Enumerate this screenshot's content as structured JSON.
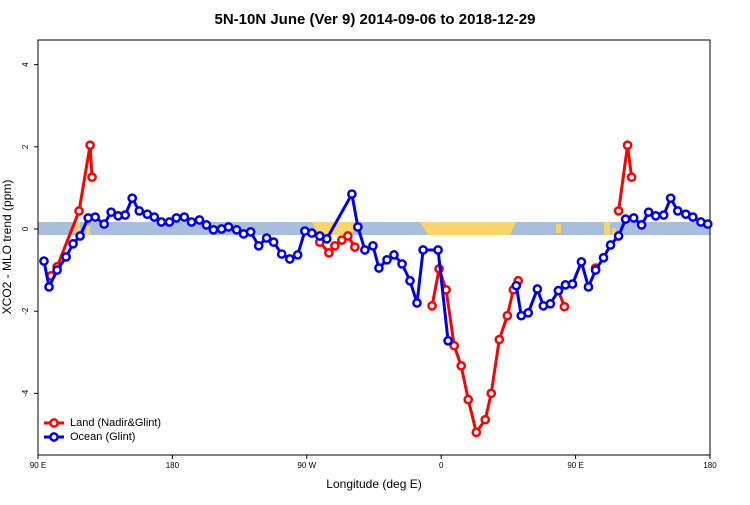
{
  "chart_data": {
    "type": "line",
    "title": "5N-10N June (Ver 9)   2014-09-06 to 2018-12-29",
    "x_label": "Longitude (deg E)",
    "y_label": "XCO2 - MLO trend (ppm)",
    "xlim": [
      90,
      540
    ],
    "ylim": [
      -5.5,
      4.6
    ],
    "xticks": [
      {
        "value": 90,
        "label": "90 E"
      },
      180,
      {
        "value": 270,
        "label": "90 W"
      },
      {
        "value": 360,
        "label": "0"
      },
      {
        "value": 450,
        "label": "90 E"
      },
      {
        "value": 540,
        "label": "180"
      }
    ],
    "yticks": [
      4,
      2,
      0,
      -2,
      -4
    ],
    "legend": "bottom-left",
    "series": [
      {
        "name": "Land (Nadir&Glint)",
        "color": "#ff0000",
        "x": [
          98.7,
          102.8,
          117.5,
          124.9,
          126.2,
          null,
          278.7,
          284.8,
          288.8,
          293.5,
          297.5,
          302.2,
          null,
          353.9,
          358.6,
          363.3,
          368.7,
          373.4,
          378.1,
          383.5,
          389.5,
          393.5,
          398.9,
          404.3,
          408.3,
          411.6,
          null,
          438.5,
          442.5,
          null,
          463.4,
          null,
          478.8,
          484.8,
          487.5
        ],
        "values": [
          -1.14,
          -0.92,
          0.44,
          2.04,
          1.26,
          null,
          -0.32,
          -0.58,
          -0.41,
          -0.27,
          -0.17,
          -0.44,
          null,
          -1.87,
          -0.97,
          -1.48,
          -2.84,
          -3.33,
          -4.15,
          -4.95,
          -4.64,
          -4.0,
          -2.69,
          -2.11,
          -1.48,
          -1.26,
          null,
          -1.5,
          -1.89,
          null,
          -0.95,
          null,
          0.44,
          2.04,
          1.26
        ]
      },
      {
        "name": "Ocean (Glint)",
        "color": "#0000ee",
        "x": [
          94,
          97.4,
          102.8,
          108.8,
          113.5,
          118.2,
          123.6,
          128.3,
          134.3,
          139,
          143.7,
          148.4,
          153.1,
          157.8,
          163.2,
          167.9,
          172.6,
          178,
          182.7,
          188,
          192.8,
          198.1,
          202.8,
          207.5,
          212.9,
          217.6,
          223,
          227.7,
          232.4,
          237.8,
          243.1,
          247.8,
          253.2,
          258.6,
          263.9,
          268.7,
          273.4,
          278.7,
          283.4,
          300.2,
          304.2,
          308.9,
          314.3,
          318.3,
          323.7,
          328.4,
          333.8,
          339.1,
          343.8,
          347.9,
          357.9,
          364.6,
          null,
          410.3,
          413.6,
          418.3,
          424.4,
          428.4,
          433.1,
          438.5,
          443.2,
          447.9,
          453.9,
          458.6,
          463.4,
          468.7,
          473.4,
          478.8,
          483.5,
          488.9,
          494.2,
          498.9,
          503.7,
          509,
          513.7,
          518.4,
          523.8,
          528.5,
          533.9,
          538.5
        ],
        "values": [
          -0.78,
          -1.41,
          -1.0,
          -0.68,
          -0.36,
          -0.17,
          0.27,
          0.29,
          0.12,
          0.41,
          0.32,
          0.34,
          0.75,
          0.44,
          0.36,
          0.29,
          0.17,
          0.17,
          0.27,
          0.29,
          0.17,
          0.22,
          0.1,
          -0.02,
          0,
          0.05,
          -0.02,
          -0.12,
          -0.07,
          -0.41,
          -0.22,
          -0.32,
          -0.61,
          -0.73,
          -0.63,
          -0.05,
          -0.1,
          -0.17,
          -0.24,
          0.85,
          0.05,
          -0.51,
          -0.41,
          -0.95,
          -0.75,
          -0.63,
          -0.85,
          -1.26,
          -1.8,
          -0.51,
          -0.51,
          -2.72,
          null,
          -1.38,
          -2.11,
          -2.04,
          -1.46,
          -1.87,
          -1.82,
          -1.5,
          -1.36,
          -1.34,
          -0.8,
          -1.41,
          -1.0,
          -0.7,
          -0.39,
          -0.17,
          0.24,
          0.27,
          0.1,
          0.41,
          0.32,
          0.34,
          0.75,
          0.44,
          0.36,
          0.29,
          0.17,
          0.12
        ]
      }
    ]
  }
}
